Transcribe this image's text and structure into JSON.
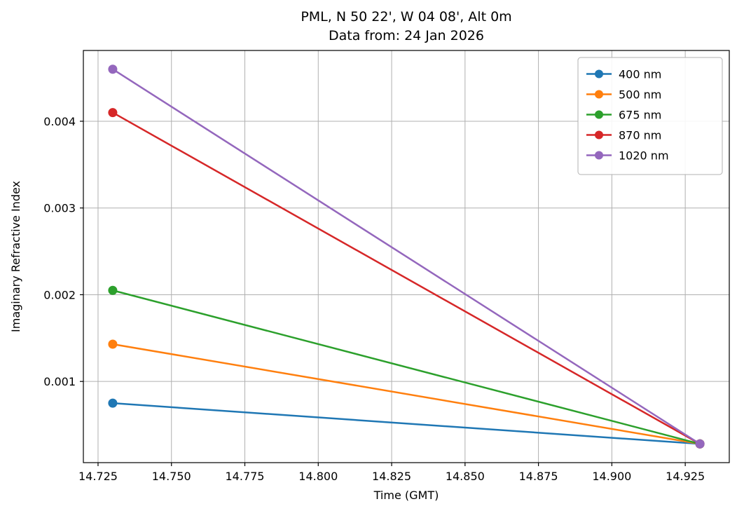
{
  "chart_data": {
    "type": "line",
    "title": "PML, N 50 22', W 04 08', Alt 0m",
    "subtitle": "Data from: 24 Jan 2026",
    "xlabel": "Time (GMT)",
    "ylabel": "Imaginary Refractive Index",
    "x": [
      14.73,
      14.93
    ],
    "series": [
      {
        "name": "400 nm",
        "color": "#1f77b4",
        "values": [
          0.00075,
          0.00028
        ]
      },
      {
        "name": "500 nm",
        "color": "#ff7f0e",
        "values": [
          0.00143,
          0.00028
        ]
      },
      {
        "name": "675 nm",
        "color": "#2ca02c",
        "values": [
          0.00205,
          0.00028
        ]
      },
      {
        "name": "870 nm",
        "color": "#d62728",
        "values": [
          0.0041,
          0.00028
        ]
      },
      {
        "name": "1020 nm",
        "color": "#9467bd",
        "values": [
          0.0046,
          0.00028
        ]
      }
    ],
    "xticks": [
      14.725,
      14.75,
      14.775,
      14.8,
      14.825,
      14.85,
      14.875,
      14.9,
      14.925
    ],
    "xtick_labels": [
      "14.725",
      "14.750",
      "14.775",
      "14.800",
      "14.825",
      "14.850",
      "14.875",
      "14.900",
      "14.925"
    ],
    "yticks": [
      0.001,
      0.002,
      0.003,
      0.004
    ],
    "ytick_labels": [
      "0.001",
      "0.002",
      "0.003",
      "0.004"
    ],
    "xlim": [
      14.72,
      14.94
    ],
    "ylim": [
      6.4e-05,
      0.004816
    ],
    "grid": true,
    "grid_color": "#b0b0b0",
    "spine_color": "#000000",
    "legend_position": "upper right"
  }
}
